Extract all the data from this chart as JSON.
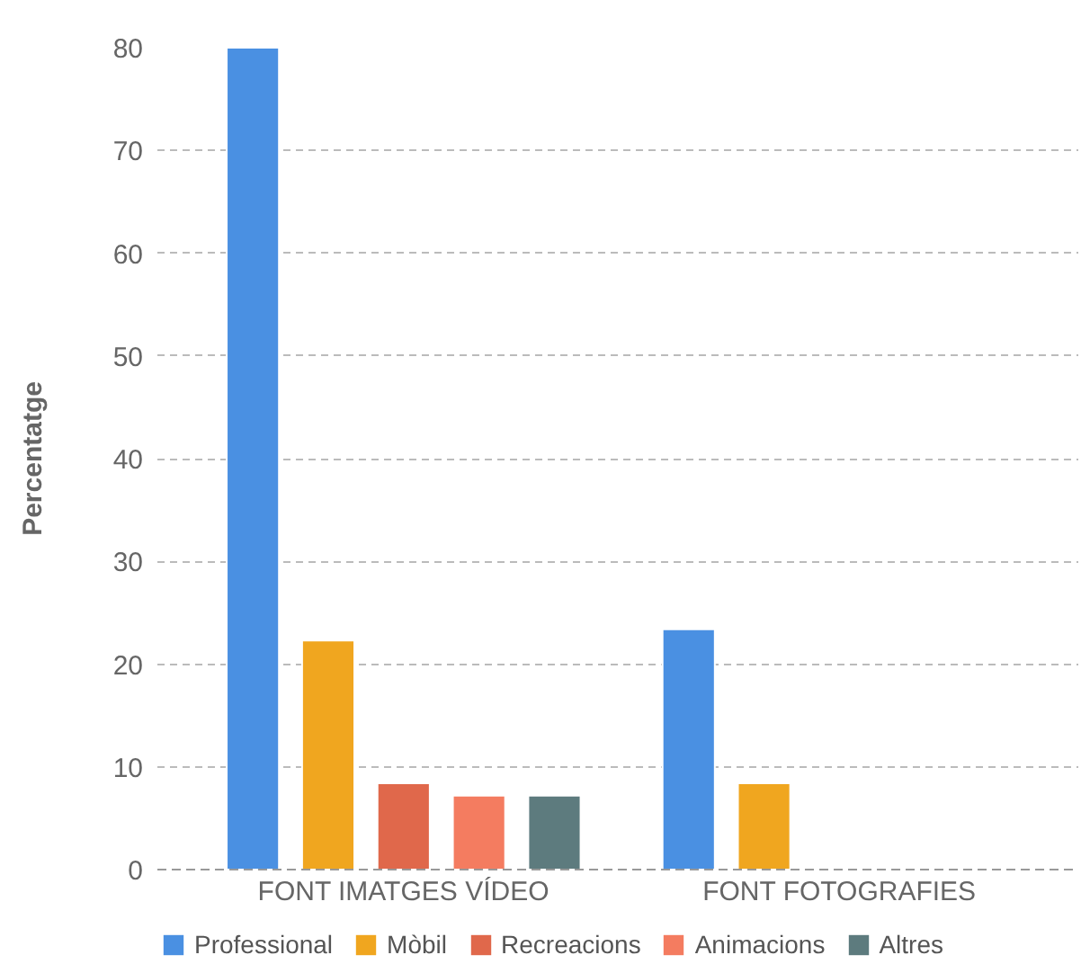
{
  "chart_data": {
    "type": "bar",
    "ylabel": "Percentatge",
    "categories": [
      "FONT IMATGES VÍDEO",
      "FONT FOTOGRAFIES"
    ],
    "series": [
      {
        "name": "Professional",
        "color": "#4a90e2",
        "values": [
          80,
          23.4
        ]
      },
      {
        "name": "Mòbil",
        "color": "#f0a61f",
        "values": [
          22.3,
          8.4
        ]
      },
      {
        "name": "Recreacions",
        "color": "#e0684b",
        "values": [
          8.4,
          null
        ]
      },
      {
        "name": "Animacions",
        "color": "#f47c60",
        "values": [
          7.2,
          null
        ]
      },
      {
        "name": "Altres",
        "color": "#5d7b7e",
        "values": [
          7.2,
          null
        ]
      }
    ],
    "ylim": [
      0,
      80
    ],
    "yticks": [
      0,
      10,
      20,
      30,
      40,
      50,
      60,
      70,
      80
    ],
    "grid": "y",
    "legend": "bottom"
  }
}
